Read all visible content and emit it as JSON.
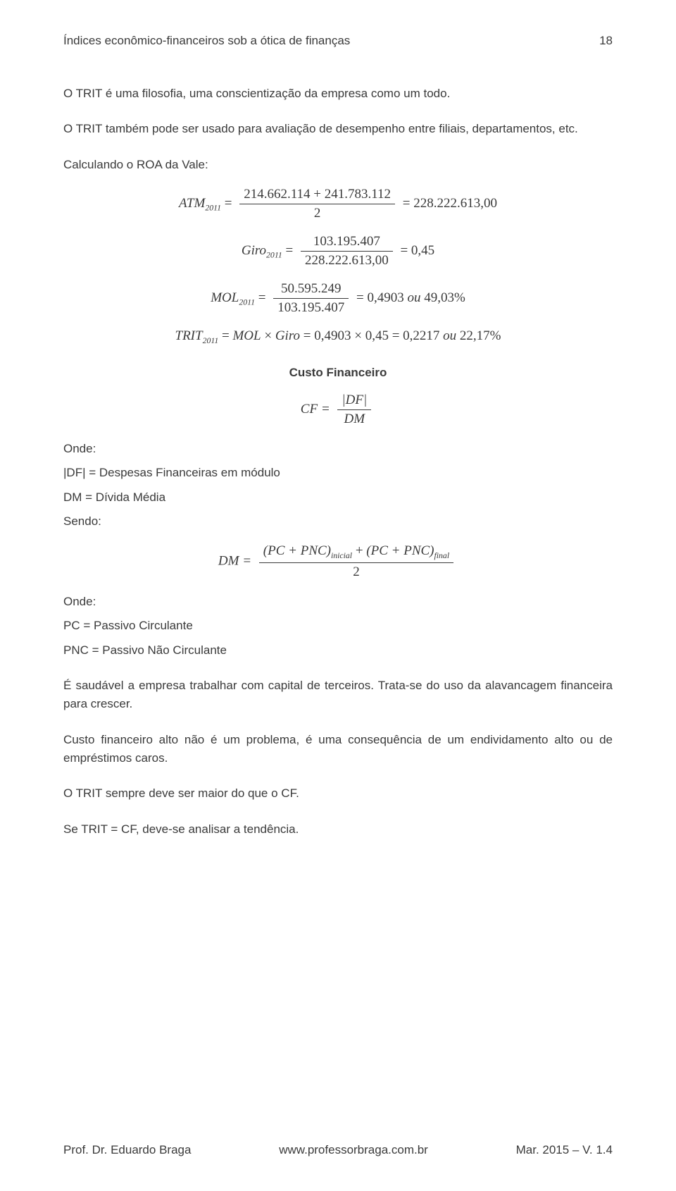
{
  "colors": {
    "text": "#3a3a3a",
    "background": "#ffffff",
    "rule": "#3a3a3a"
  },
  "typography": {
    "body_family": "Arial, Helvetica, sans-serif",
    "math_family": "Cambria Math, Times New Roman, serif",
    "body_size_pt": 12,
    "math_size_pt": 13.5,
    "line_height": 1.55
  },
  "header": {
    "title": "Índices econômico-financeiros sob a ótica de finanças",
    "page_number": "18"
  },
  "body": {
    "p1": "O TRIT é uma filosofia, uma conscientização da empresa como um todo.",
    "p2": "O TRIT também pode ser usado para avaliação de desempenho entre filiais, departamentos, etc.",
    "p3": "Calculando o ROA da Vale:"
  },
  "eq_atm": {
    "lhs_sym": "ATM",
    "lhs_sub": "2011",
    "num": "214.662.114 + 241.783.112",
    "den": "2",
    "rhs": "= 228.222.613,00"
  },
  "eq_giro": {
    "lhs_sym": "Giro",
    "lhs_sub": "2011",
    "num": "103.195.407",
    "den": "228.222.613,00",
    "rhs": "= 0,45"
  },
  "eq_mol": {
    "lhs_sym": "MOL",
    "lhs_sub": "2011",
    "num": "50.595.249",
    "den": "103.195.407",
    "rhs": "= 0,4903 ou 49,03%"
  },
  "eq_trit": {
    "text": "TRIT",
    "sub": "2011",
    "body": " = MOL × Giro = 0,4903 × 0,45 = 0,2217 ou 22,17%"
  },
  "custo_heading": "Custo Financeiro",
  "eq_cf": {
    "lhs": "CF =",
    "num": "|DF|",
    "den": "DM"
  },
  "onde1": "Onde:",
  "def_df": "|DF| = Despesas Financeiras em módulo",
  "def_dm": "DM = Dívida Média",
  "sendo": "Sendo:",
  "eq_dm": {
    "lhs": "DM =",
    "num_a": "(PC + PNC)",
    "num_a_sub": "inicial",
    "num_plus": " + ",
    "num_b": "(PC + PNC)",
    "num_b_sub": "final",
    "den": "2"
  },
  "onde2": "Onde:",
  "def_pc": "PC = Passivo Circulante",
  "def_pnc": "PNC = Passivo Não Circulante",
  "p_saud": "É saudável a empresa trabalhar com capital de terceiros. Trata-se do uso da alavancagem financeira para crescer.",
  "p_custo": "Custo financeiro alto não é um problema, é uma consequência de um endividamento alto ou de empréstimos caros.",
  "p_trit_cf": "O TRIT sempre deve ser maior do que o CF.",
  "p_se": "Se TRIT = CF, deve-se analisar a tendência.",
  "footer": {
    "left": "Prof. Dr. Eduardo Braga",
    "center": "www.professorbraga.com.br",
    "right": "Mar. 2015 – V. 1.4"
  }
}
